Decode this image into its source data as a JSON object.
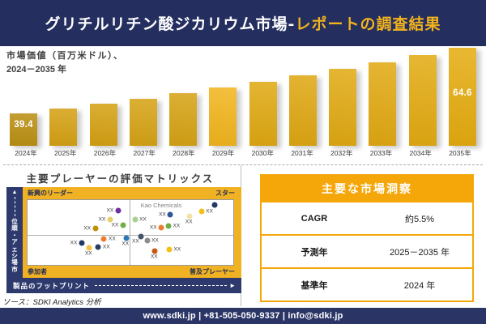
{
  "header": {
    "title_main": "グリチルリチン酸ジカリウム市場-",
    "title_accent": "レポートの調査結果"
  },
  "chart_data": {
    "type": "bar",
    "title": "市場価値（百万米ドル）、2024－2035 年",
    "label_line1": "市場価値（百万米ドル）、",
    "label_line2": "2024－2035 年",
    "unit": "百万米ドル",
    "categories": [
      "2024年",
      "2025年",
      "2026年",
      "2027年",
      "2028年",
      "2029年",
      "2030年",
      "2031年",
      "2032年",
      "2033年",
      "2034年",
      "2035年"
    ],
    "values": [
      39.4,
      41.2,
      43.1,
      45.1,
      47.2,
      49.3,
      51.6,
      54.0,
      56.4,
      59.0,
      61.7,
      64.6
    ],
    "labeled_values": {
      "2024年": "39.4",
      "2035年": "64.6"
    },
    "ylim": [
      27,
      66
    ],
    "grid": false,
    "legend": "none",
    "bar_colors": [
      "#BA8F12",
      "#D5A113",
      "#D5A113",
      "#D6A314",
      "#D6A314",
      "#F2B51D",
      "#E0A912",
      "#DFA712",
      "#E1AA13",
      "#E1A912",
      "#E3AB12",
      "#E5AC10"
    ],
    "value_label_color": "#ffffff"
  },
  "matrix": {
    "title": "主要プレーヤーの評価マトリックス",
    "quadrants": {
      "top_left": "新興のリーダー",
      "top_right": "スター",
      "bottom_left": "参加者",
      "bottom_right": "普及プレーヤー"
    },
    "y_axis": "市場シェア・順位",
    "x_axis": "製品のフットプリント",
    "highlight_company": "Kao Chemicals",
    "point_label": "XX",
    "points": [
      {
        "x": 44.0,
        "y": 16.5,
        "color": "#7030A0",
        "side": "left"
      },
      {
        "x": 40.1,
        "y": 30.1,
        "color": "#E6D06C",
        "side": "left"
      },
      {
        "x": 32.9,
        "y": 44.2,
        "color": "#BF9000",
        "side": "left"
      },
      {
        "x": 46.4,
        "y": 38.9,
        "color": "#70AD47",
        "side": "left"
      },
      {
        "x": 37.2,
        "y": 59.9,
        "color": "#ED7D31",
        "side": "right"
      },
      {
        "x": 48.0,
        "y": 59.0,
        "color": "#2E75B6",
        "side": "bottom"
      },
      {
        "x": 26.3,
        "y": 65.9,
        "color": "#1F3864",
        "side": "left"
      },
      {
        "x": 34.4,
        "y": 71.9,
        "color": "#2A3B5E",
        "side": "right"
      },
      {
        "x": 30.1,
        "y": 73.9,
        "color": "#F5C242",
        "side": "bottom"
      },
      {
        "x": 52.2,
        "y": 30.1,
        "color": "#A9D18E",
        "side": "right"
      },
      {
        "x": 69.4,
        "y": 22.0,
        "color": "#2F5597",
        "side": "left"
      },
      {
        "x": 78.9,
        "y": 24.9,
        "color": "#F0E3A3",
        "side": "bottom"
      },
      {
        "x": 84.5,
        "y": 17.7,
        "color": "#F2C018",
        "side": "right"
      },
      {
        "x": 91.0,
        "y": 6.9,
        "color": "#1F3864",
        "side": "none"
      },
      {
        "x": 68.5,
        "y": 40.1,
        "color": "#70AD47",
        "side": "right"
      },
      {
        "x": 65.0,
        "y": 42.2,
        "color": "#ED7D31",
        "side": "left"
      },
      {
        "x": 55.2,
        "y": 56.3,
        "color": "#44546A",
        "side": "bottom-left"
      },
      {
        "x": 58.1,
        "y": 62.3,
        "color": "#8C8C8C",
        "side": "right"
      },
      {
        "x": 62.0,
        "y": 79.2,
        "color": "#C55A11",
        "side": "bottom"
      },
      {
        "x": 68.9,
        "y": 75.9,
        "color": "#F2C018",
        "side": "right"
      }
    ]
  },
  "insights": {
    "title": "主要な市場洞察",
    "rows": [
      {
        "label": "CAGR",
        "value": "約5.5%"
      },
      {
        "label": "予測年",
        "value": "2025－2035 年"
      },
      {
        "label": "基準年",
        "value": "2024 年"
      }
    ]
  },
  "source": "ソース：SDKI Analytics 分析",
  "footer": "www.sdki.jp | +81-505-050-9337 | info@sdki.jp",
  "colors": {
    "navy": "#242E5F",
    "navy_strip": "#2E3A6E",
    "footer_navy": "#2A3566",
    "amber": "#F2B31C",
    "amber_matrix": "#F0B223",
    "amber_table": "#F5A70A"
  }
}
